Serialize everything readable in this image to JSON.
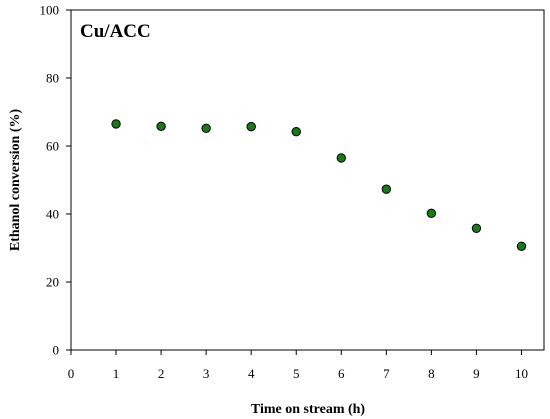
{
  "chart_data": {
    "type": "scatter",
    "title": "Cu/ACC",
    "xlabel": "Time on stream (h)",
    "ylabel": "Ethanol conversion (%)",
    "xlim": [
      0,
      10.5
    ],
    "ylim": [
      0,
      100
    ],
    "xticks": [
      0,
      1,
      2,
      3,
      4,
      5,
      6,
      7,
      8,
      9,
      10
    ],
    "yticks": [
      0,
      20,
      40,
      60,
      80,
      100
    ],
    "grid": false,
    "legend": "none",
    "marker_color": "#1a7a1a",
    "marker_edge": "#000000",
    "series": [
      {
        "x": [
          1,
          2,
          3,
          4,
          5,
          6,
          7,
          8,
          9,
          10
        ],
        "y": [
          66.5,
          65.8,
          65.2,
          65.7,
          64.2,
          56.5,
          47.3,
          40.2,
          35.8,
          30.5
        ]
      }
    ]
  }
}
